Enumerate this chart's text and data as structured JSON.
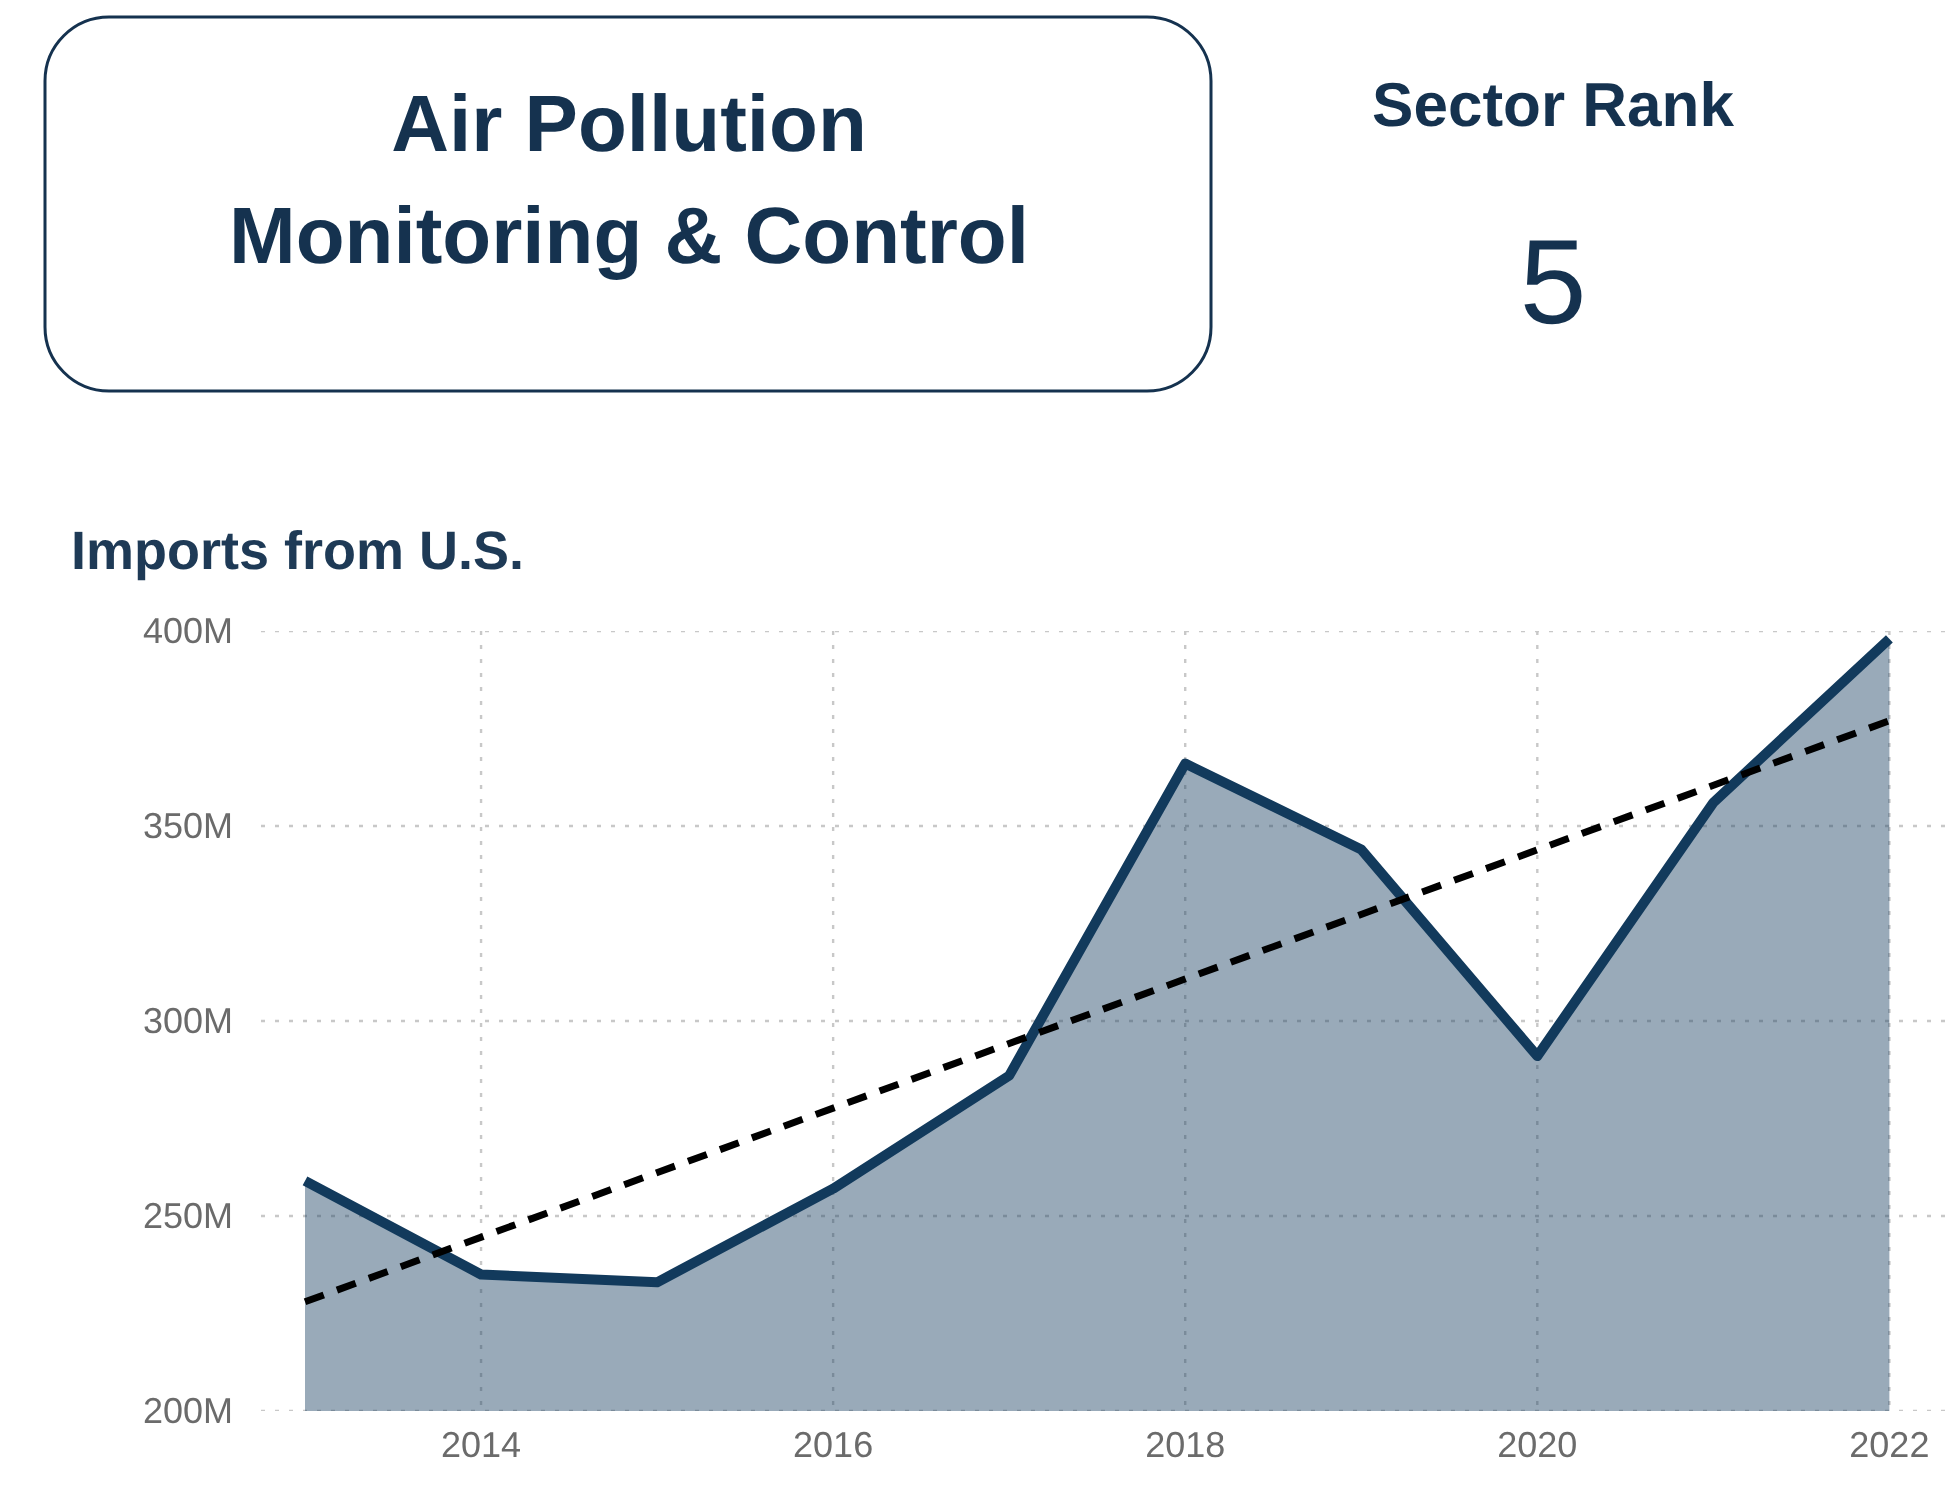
{
  "chart_data": [
    {
      "type": "other",
      "title": "Air Pollution Monitoring & Control"
    },
    {
      "type": "other",
      "title": "Sector Rank",
      "annotations": [
        "5"
      ]
    },
    {
      "type": "area",
      "title": "Imports from U.S.",
      "x": [
        2013,
        2014,
        2015,
        2016,
        2017,
        2018,
        2019,
        2020,
        2021,
        2022
      ],
      "series": [
        {
          "type": "area",
          "color": "#123a5c",
          "values": [
            259,
            235,
            233,
            257,
            286,
            366,
            344,
            291,
            356,
            398
          ]
        },
        {
          "type": "line",
          "color": "#000000",
          "line_style": "dashed",
          "x": [
            2013,
            2022
          ],
          "values": [
            228,
            377
          ]
        }
      ],
      "xlim": [
        2012.75,
        2022.35
      ],
      "ylim": [
        200,
        400
      ],
      "xticks": [
        2014,
        2016,
        2018,
        2020,
        2022
      ],
      "yticks": [
        {
          "value": 200,
          "label": "200M"
        },
        {
          "value": 250,
          "label": "250M"
        },
        {
          "value": 300,
          "label": "300M"
        },
        {
          "value": 350,
          "label": "350M"
        },
        {
          "value": 400,
          "label": "400M"
        }
      ],
      "grid": true
    }
  ]
}
